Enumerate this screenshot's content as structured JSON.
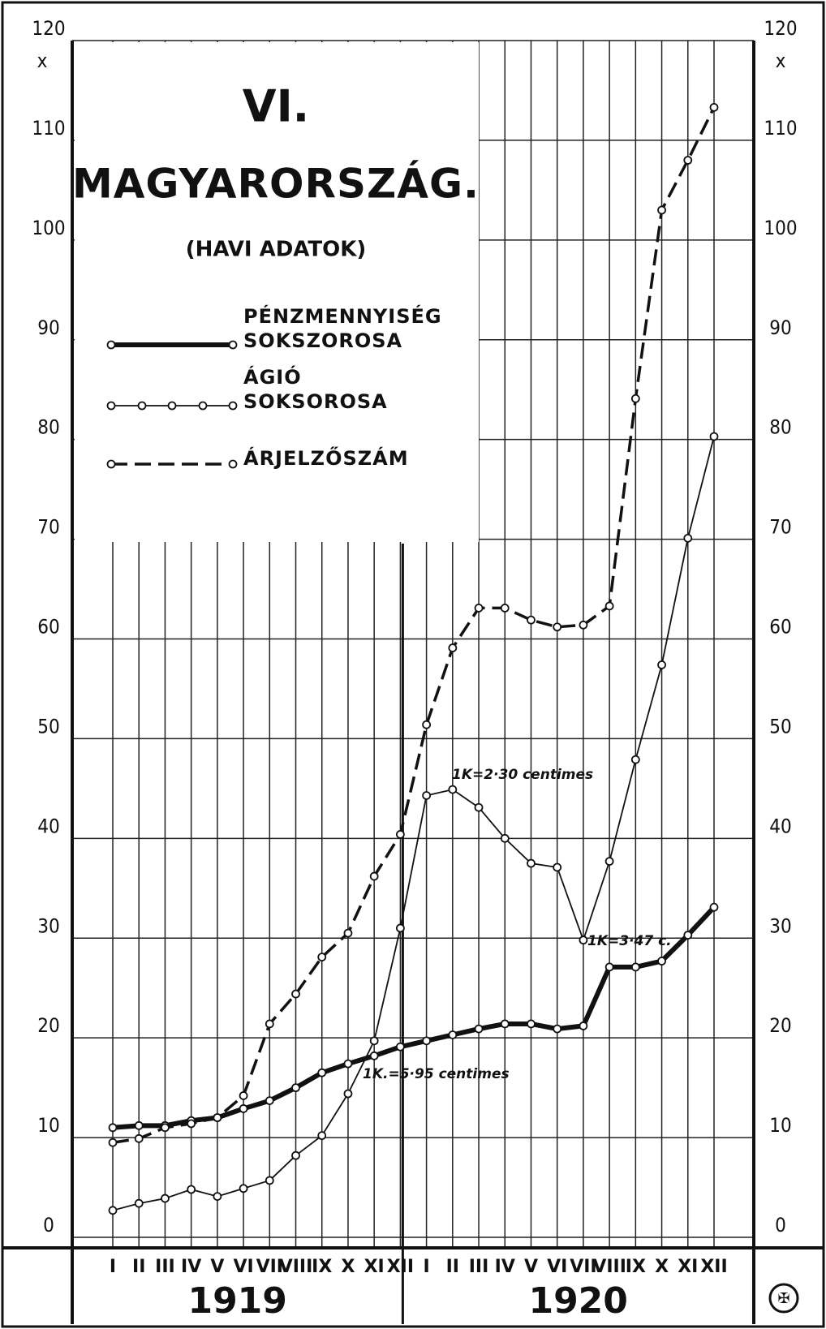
{
  "chart_data": {
    "type": "line",
    "title": "VI.",
    "subtitle": "MAGYARORSZÁG.",
    "note": "(HAVI ADATOK)",
    "unit": "x",
    "categories": [
      "I",
      "II",
      "III",
      "IV",
      "V",
      "VI",
      "VII",
      "VIII",
      "IX",
      "X",
      "XI",
      "XII",
      "I",
      "II",
      "III",
      "IV",
      "V",
      "VI",
      "VII",
      "VIII",
      "IX",
      "X",
      "XI",
      "XII"
    ],
    "groups": [
      "1919",
      "1920"
    ],
    "ylim": [
      0,
      120
    ],
    "yticks": [
      0,
      10,
      20,
      30,
      40,
      50,
      60,
      70,
      80,
      90,
      100,
      110,
      120
    ],
    "grid": true,
    "series": [
      {
        "name": "PÉNZMENNYISÉG SOKSZOROSA",
        "color": "#111111",
        "style": "solid",
        "values": [
          11.0,
          11.2,
          11.2,
          11.7,
          12.0,
          12.9,
          13.7,
          15.0,
          16.5,
          17.4,
          18.2,
          19.1,
          19.7,
          20.3,
          20.9,
          21.4,
          21.4,
          20.9,
          21.2,
          27.1,
          27.1,
          27.7,
          30.3,
          33.1
        ]
      },
      {
        "name": "ÁGIÓ SOKSOROSA",
        "color": "#111111",
        "style": "dotted",
        "values": [
          2.7,
          3.4,
          3.9,
          4.8,
          4.1,
          4.9,
          5.7,
          8.2,
          10.2,
          14.4,
          19.7,
          31.0,
          44.3,
          44.9,
          43.1,
          40.0,
          37.5,
          37.1,
          29.8,
          37.7,
          47.9,
          57.4,
          70.1,
          80.3
        ]
      },
      {
        "name": "ÁRJELZŐSZÁM",
        "color": "#111111",
        "style": "dashed",
        "values": [
          9.5,
          9.9,
          11.0,
          11.4,
          12.0,
          14.2,
          21.4,
          24.4,
          28.1,
          30.5,
          36.2,
          40.4,
          51.4,
          59.1,
          63.1,
          63.1,
          61.9,
          61.2,
          61.4,
          63.3,
          84.1,
          103.0,
          108.0,
          113.3
        ]
      }
    ],
    "annotations": [
      "1K.=5·95 centimes",
      "1K=2·30 centimes",
      "1K=3·47 c."
    ]
  }
}
